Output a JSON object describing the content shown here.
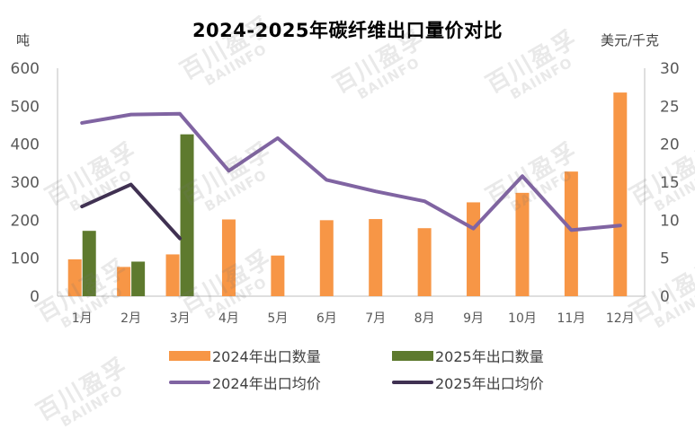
{
  "chart_data": {
    "type": "bar",
    "title": "2024-2025年碳纤维出口量价对比",
    "ylabel_left": "吨",
    "ylabel_right": "美元/千克",
    "categories": [
      "1月",
      "2月",
      "3月",
      "4月",
      "5月",
      "6月",
      "7月",
      "8月",
      "9月",
      "10月",
      "11月",
      "12月"
    ],
    "ylim_left": [
      0,
      600
    ],
    "yticks_left": [
      "0",
      "100",
      "200",
      "300",
      "400",
      "500",
      "600"
    ],
    "ylim_right": [
      0,
      30
    ],
    "yticks_right": [
      "0",
      "5",
      "10",
      "15",
      "20",
      "25",
      "30"
    ],
    "bar_series": [
      {
        "name": "2024年出口数量",
        "color": "#F79646",
        "values": [
          97,
          77,
          110,
          202,
          107,
          200,
          203,
          179,
          247,
          272,
          328,
          536
        ]
      },
      {
        "name": "2025年出口数量",
        "color": "#5E7A2E",
        "values": [
          172,
          91,
          426,
          null,
          null,
          null,
          null,
          null,
          null,
          null,
          null,
          null
        ]
      }
    ],
    "line_series": [
      {
        "name": "2024年出口均价",
        "color": "#8064A2",
        "values": [
          22.8,
          23.9,
          24.0,
          16.5,
          20.8,
          15.3,
          13.8,
          12.5,
          8.9,
          15.8,
          8.7,
          9.3
        ]
      },
      {
        "name": "2025年出口均价",
        "color": "#403152",
        "values": [
          11.8,
          14.7,
          7.6,
          null,
          null,
          null,
          null,
          null,
          null,
          null,
          null,
          null
        ]
      }
    ],
    "grid": false,
    "legend_position": "bottom"
  },
  "watermark": {
    "text_cn": "百川盈孚",
    "text_en": "BAIINFO"
  }
}
